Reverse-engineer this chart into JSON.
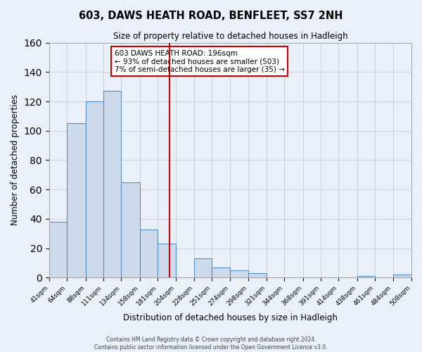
{
  "title": "603, DAWS HEATH ROAD, BENFLEET, SS7 2NH",
  "subtitle": "Size of property relative to detached houses in Hadleigh",
  "xlabel": "Distribution of detached houses by size in Hadleigh",
  "ylabel": "Number of detached properties",
  "bin_edges": [
    41,
    64,
    88,
    111,
    134,
    158,
    181,
    204,
    228,
    251,
    274,
    298,
    321,
    344,
    368,
    391,
    414,
    438,
    461,
    484,
    508
  ],
  "bar_heights": [
    38,
    105,
    120,
    127,
    65,
    33,
    23,
    0,
    13,
    7,
    5,
    3,
    0,
    0,
    0,
    0,
    0,
    1,
    0,
    2
  ],
  "bar_color": "#ccdaeb",
  "bar_edge_color": "#5590c8",
  "vline_x": 196,
  "vline_color": "#cc0000",
  "annotation_text": "603 DAWS HEATH ROAD: 196sqm\n← 93% of detached houses are smaller (503)\n7% of semi-detached houses are larger (35) →",
  "annotation_box_edge_color": "#cc0000",
  "annotation_box_face_color": "#ffffff",
  "tick_labels": [
    "41sqm",
    "64sqm",
    "88sqm",
    "111sqm",
    "134sqm",
    "158sqm",
    "181sqm",
    "204sqm",
    "228sqm",
    "251sqm",
    "274sqm",
    "298sqm",
    "321sqm",
    "344sqm",
    "368sqm",
    "391sqm",
    "414sqm",
    "438sqm",
    "461sqm",
    "484sqm",
    "508sqm"
  ],
  "ylim": [
    0,
    160
  ],
  "yticks": [
    0,
    20,
    40,
    60,
    80,
    100,
    120,
    140,
    160
  ],
  "grid_color": "#c8d0dc",
  "background_color": "#eaf0f8",
  "footer_line1": "Contains HM Land Registry data © Crown copyright and database right 2024.",
  "footer_line2": "Contains public sector information licensed under the Open Government Licence v3.0."
}
